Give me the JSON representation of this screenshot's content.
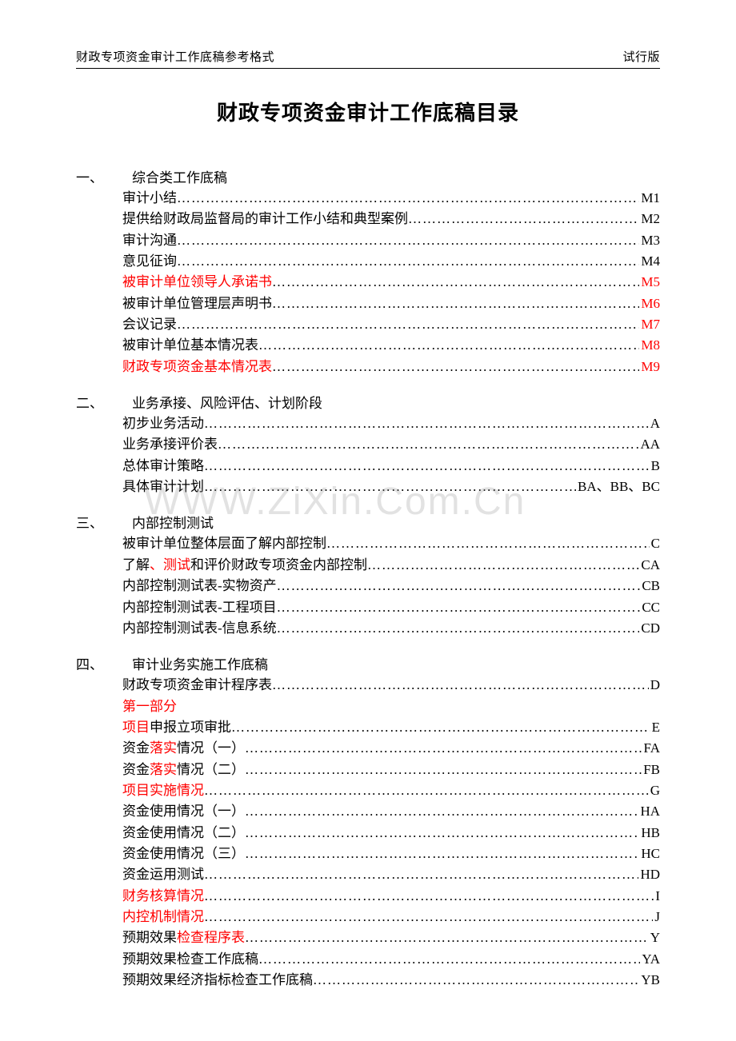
{
  "header_left": "财政专项资金审计工作底稿参考格式",
  "header_right": "试行版",
  "title": "财政专项资金审计工作底稿目录",
  "watermark": "WWW.ZiXin.Com.Cn",
  "dots": "…………………………………………………………………………………………………………",
  "sections": [
    {
      "num": "一、",
      "heading": "综合类工作底稿",
      "items": [
        {
          "parts": [
            {
              "t": "审计小结"
            }
          ],
          "code": "M1"
        },
        {
          "parts": [
            {
              "t": "提供给财政局监督局的审计工作小结和典型案例"
            }
          ],
          "code": "M2"
        },
        {
          "parts": [
            {
              "t": "审计沟通"
            }
          ],
          "code": "M3"
        },
        {
          "parts": [
            {
              "t": "意见征询"
            }
          ],
          "code": "M4"
        },
        {
          "parts": [
            {
              "t": "被审计单位领导人承诺书",
              "red": true
            }
          ],
          "code": "M5",
          "code_red": true
        },
        {
          "parts": [
            {
              "t": "被审计单位管理层声明书"
            }
          ],
          "code": "M6",
          "code_red": true
        },
        {
          "parts": [
            {
              "t": "会议记录"
            }
          ],
          "code": "M7",
          "code_red": true
        },
        {
          "parts": [
            {
              "t": "被审计单位基本情况表"
            }
          ],
          "code": "M8",
          "code_red": true
        },
        {
          "parts": [
            {
              "t": "财政专项资金基本情况表",
              "red": true
            }
          ],
          "code": "M9",
          "code_red": true
        }
      ]
    },
    {
      "num": "二、",
      "heading": "业务承接、风险评估、计划阶段",
      "items": [
        {
          "parts": [
            {
              "t": "初步业务活动 "
            }
          ],
          "code": "A"
        },
        {
          "parts": [
            {
              "t": "业务承接评价表 "
            }
          ],
          "code": "AA"
        },
        {
          "parts": [
            {
              "t": "总体审计策略 "
            }
          ],
          "code": "B"
        },
        {
          "parts": [
            {
              "t": "具体审计计划 "
            }
          ],
          "code": "BA、BB、BC"
        }
      ]
    },
    {
      "num": "三、",
      "heading": "内部控制测试",
      "items": [
        {
          "parts": [
            {
              "t": "被审计单位整体层面了解内部控制"
            }
          ],
          "code": "C"
        },
        {
          "parts": [
            {
              "t": "了解"
            },
            {
              "t": "、测试",
              "red": true
            },
            {
              "t": "和评价财政专项资金内部控制"
            }
          ],
          "code": "CA"
        },
        {
          "parts": [
            {
              "t": "内部控制测试表-实物资产 "
            }
          ],
          "code": "CB"
        },
        {
          "parts": [
            {
              "t": "内部控制测试表-工程项目 "
            }
          ],
          "code": "CC"
        },
        {
          "parts": [
            {
              "t": "内部控制测试表-信息系统 "
            }
          ],
          "code": "CD"
        }
      ]
    },
    {
      "num": "四、",
      "heading": "审计业务实施工作底稿",
      "items": [
        {
          "parts": [
            {
              "t": "财政专项资金审计程序表"
            }
          ],
          "code": "D"
        },
        {
          "parts": [
            {
              "t": "第一部分",
              "red": true
            }
          ],
          "no_dots": true
        },
        {
          "parts": [
            {
              "t": "项目",
              "red": true
            },
            {
              "t": "申报立项审批"
            }
          ],
          "code": "E"
        },
        {
          "parts": [
            {
              "t": "资金"
            },
            {
              "t": "落实",
              "red": true
            },
            {
              "t": "情况（一）"
            }
          ],
          "code": "FA"
        },
        {
          "parts": [
            {
              "t": "资金"
            },
            {
              "t": "落实",
              "red": true
            },
            {
              "t": "情况（二）"
            }
          ],
          "code": "FB"
        },
        {
          "parts": [
            {
              "t": "项目实施情况",
              "red": true
            }
          ],
          "code": "G"
        },
        {
          "parts": [
            {
              "t": "资金使用情况（一）"
            }
          ],
          "code": "HA"
        },
        {
          "parts": [
            {
              "t": "资金使用情况（二）"
            }
          ],
          "code": "HB"
        },
        {
          "parts": [
            {
              "t": "资金使用情况（三）"
            }
          ],
          "code": "HC"
        },
        {
          "parts": [
            {
              "t": "资金运用测试"
            }
          ],
          "code": "HD"
        },
        {
          "parts": [
            {
              "t": "财务核算情况",
              "red": true
            }
          ],
          "code": "I"
        },
        {
          "parts": [
            {
              "t": "内控机制情况",
              "red": true
            }
          ],
          "code": "J"
        },
        {
          "parts": [
            {
              "t": "预期效果"
            },
            {
              "t": "检查程序表",
              "red": true
            }
          ],
          "code": "Y"
        },
        {
          "parts": [
            {
              "t": "预期效果检查工作底稿"
            }
          ],
          "code": "YA"
        },
        {
          "parts": [
            {
              "t": "预期效果经济指标检查工作底稿"
            }
          ],
          "code": "YB"
        }
      ]
    }
  ]
}
